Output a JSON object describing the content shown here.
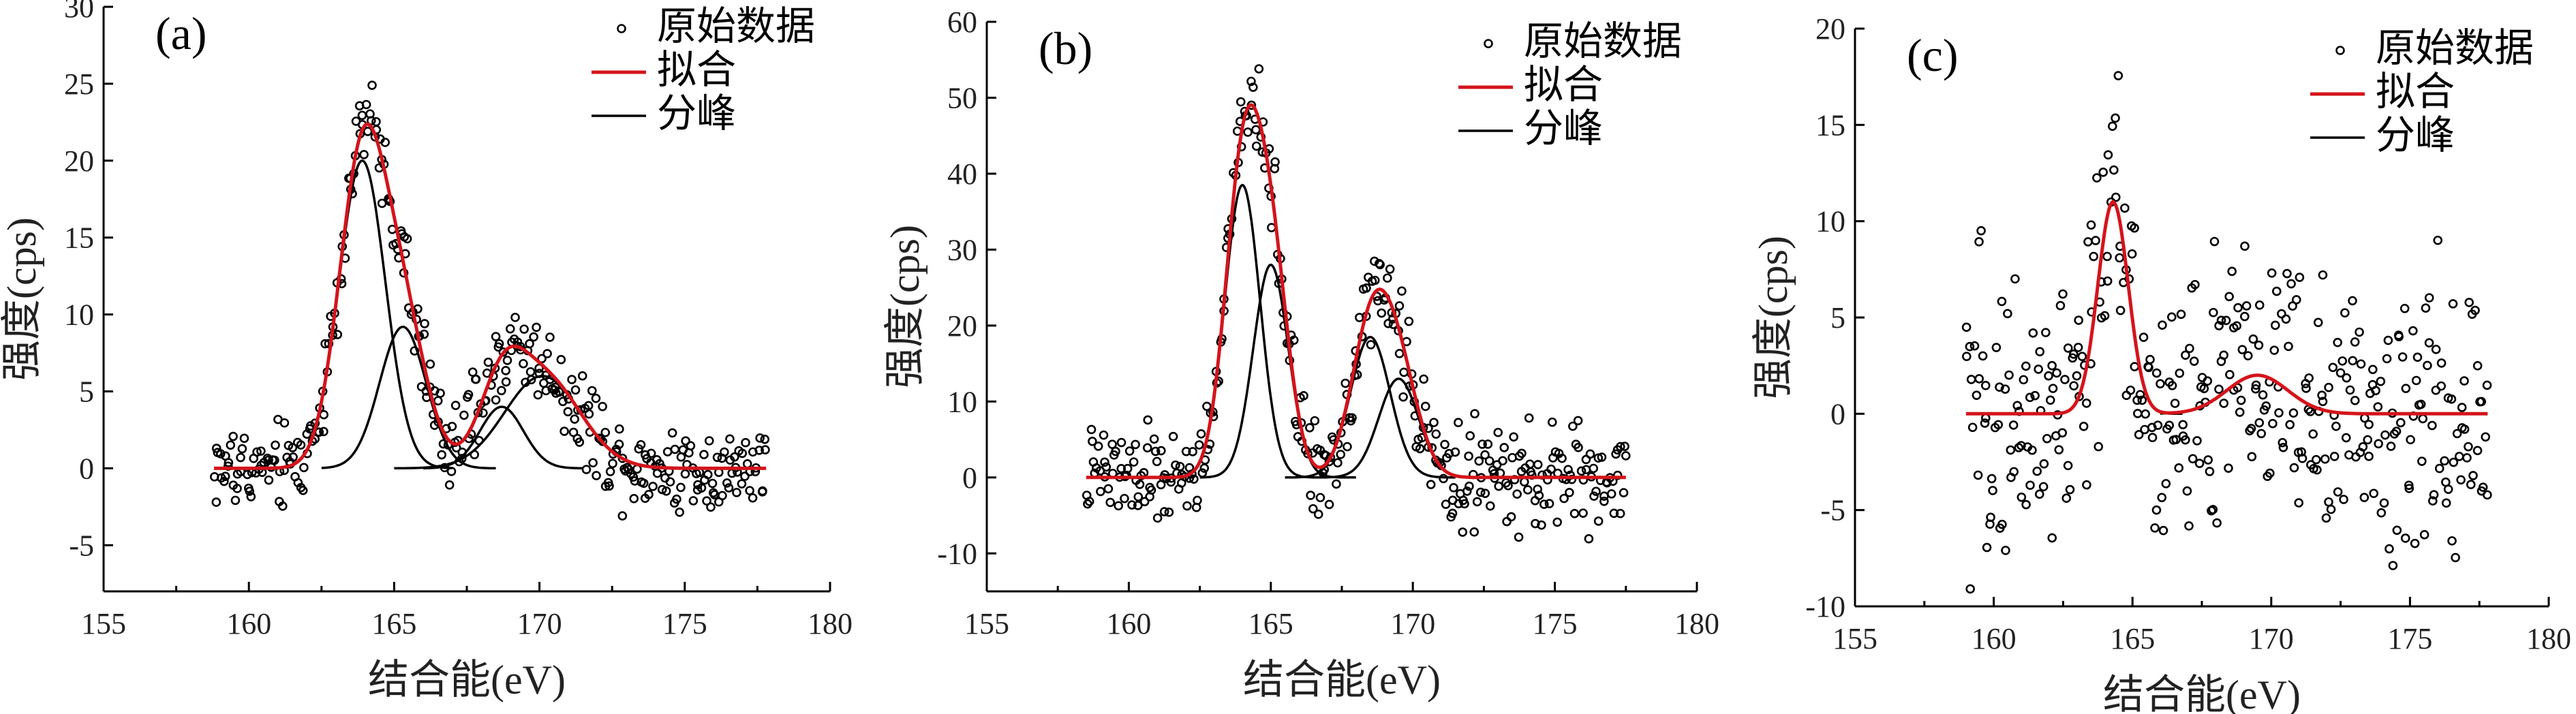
{
  "chart_data": [
    {
      "type": "scatter",
      "panel_label": "(a)",
      "xlabel": "结合能(eV)",
      "ylabel": "强度(cps)",
      "xlim": [
        155,
        180
      ],
      "ylim": [
        -8,
        30
      ],
      "xticks": [
        155,
        160,
        165,
        170,
        175,
        180
      ],
      "yticks": [
        -5,
        0,
        5,
        10,
        15,
        20,
        25,
        30
      ],
      "legend": {
        "placement": "top-right",
        "entries": [
          "原始数据",
          "拟合",
          "分峰"
        ]
      },
      "series": [
        {
          "name": "原始数据",
          "kind": "markers",
          "x_range": [
            158.8,
            177.8
          ],
          "n_points": 360,
          "noise": 1.4
        },
        {
          "name": "拟合",
          "kind": "line",
          "color": "#d4141b",
          "x": [
            158.8,
            177.8
          ]
        },
        {
          "name": "分峰",
          "kind": "line",
          "color": "#000000",
          "x_by_peak": [
            [
              161.0,
              167.0
            ],
            [
              162.5,
              168.5
            ],
            [
              166.0,
              171.5
            ],
            [
              165.0,
              177.0
            ]
          ]
        }
      ],
      "peaks": [
        {
          "center": 163.9,
          "height": 20.0,
          "sigma": 0.8
        },
        {
          "center": 165.3,
          "height": 9.2,
          "sigma": 0.8
        },
        {
          "center": 168.7,
          "height": 4.0,
          "sigma": 0.75
        },
        {
          "center": 170.1,
          "height": 6.0,
          "sigma": 1.3
        }
      ]
    },
    {
      "type": "scatter",
      "panel_label": "(b)",
      "xlabel": "结合能(eV)",
      "ylabel": "强度(cps)",
      "xlim": [
        155,
        180
      ],
      "ylim": [
        -15,
        60
      ],
      "xticks": [
        155,
        160,
        165,
        170,
        175,
        180
      ],
      "yticks": [
        -10,
        0,
        10,
        20,
        30,
        40,
        50,
        60
      ],
      "legend": {
        "placement": "top-right",
        "entries": [
          "原始数据",
          "拟合",
          "分峰"
        ]
      },
      "series": [
        {
          "name": "原始数据",
          "kind": "markers",
          "x_range": [
            158.5,
            177.5
          ],
          "n_points": 360,
          "noise": 3.0
        },
        {
          "name": "拟合",
          "kind": "line",
          "color": "#d4141b",
          "x": [
            158.5,
            177.5
          ]
        },
        {
          "name": "分峰",
          "kind": "line",
          "color": "#000000",
          "x_by_peak": [
            [
              161.2,
              167.0
            ],
            [
              162.5,
              168.0
            ],
            [
              165.5,
              171.5
            ],
            [
              166.5,
              172.5
            ]
          ]
        }
      ],
      "peaks": [
        {
          "center": 164.0,
          "height": 38.5,
          "sigma": 0.62
        },
        {
          "center": 165.0,
          "height": 28.0,
          "sigma": 0.62
        },
        {
          "center": 168.5,
          "height": 18.5,
          "sigma": 0.7
        },
        {
          "center": 169.5,
          "height": 13.0,
          "sigma": 0.7
        }
      ]
    },
    {
      "type": "scatter",
      "panel_label": "(c)",
      "xlabel": "结合能(eV)",
      "ylabel": "强度(cps)",
      "xlim": [
        155,
        180
      ],
      "ylim": [
        -10,
        20
      ],
      "xticks": [
        155,
        160,
        165,
        170,
        175,
        180
      ],
      "yticks": [
        -10,
        -5,
        0,
        5,
        10,
        15,
        20
      ],
      "legend": {
        "placement": "top-right",
        "entries": [
          "原始数据",
          "拟合",
          "分峰"
        ]
      },
      "series": [
        {
          "name": "原始数据",
          "kind": "markers",
          "x_range": [
            159.0,
            177.8
          ],
          "n_points": 380,
          "noise": 3.6
        },
        {
          "name": "拟合",
          "kind": "line",
          "color": "#d4141b",
          "x": [
            159.0,
            177.8
          ]
        },
        {
          "name": "分峰",
          "kind": "line",
          "color": "#000000",
          "x_by_peak": [
            [
              162.0,
              166.8
            ],
            [
              166.0,
              173.0
            ]
          ]
        }
      ],
      "peaks": [
        {
          "center": 164.3,
          "height": 11.0,
          "sigma": 0.55
        },
        {
          "center": 169.5,
          "height": 2.0,
          "sigma": 1.1
        }
      ]
    }
  ]
}
